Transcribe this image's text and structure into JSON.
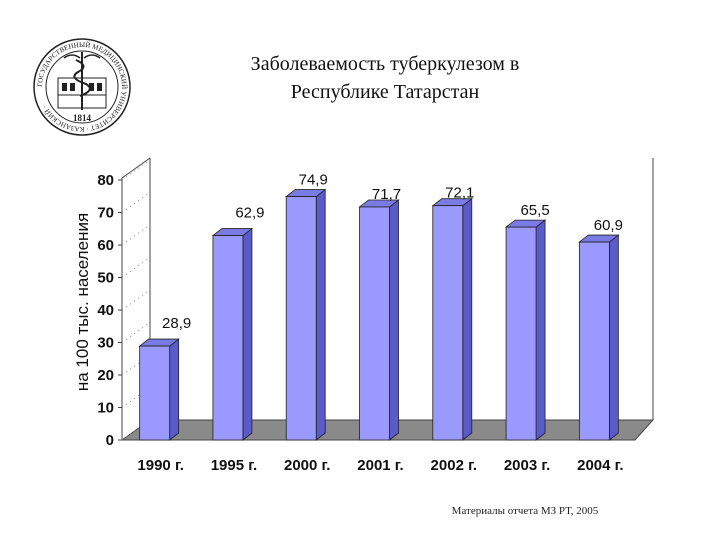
{
  "seal": {
    "year": "1814",
    "text": "ГОСУДАРСТВЕННЫЙ МЕДИЦИНСКИЙ УНИВЕРСИТЕТ · КАЗАНСКИЙ ·"
  },
  "footer": "Материалы отчета МЗ РТ, 2005",
  "colors": {
    "bar_front": "#9999ff",
    "bar_side": "#5a5ac8",
    "bar_top": "#7b7be6",
    "floor": "#8a8a8a",
    "wall": "#ffffff"
  },
  "chart_data": {
    "type": "bar",
    "title": [
      "Заболеваемость туберкулезом в",
      "Республике Татарстан"
    ],
    "ylabel": "на 100 тыс. населения",
    "xlabel": "",
    "categories": [
      "1990 г.",
      "1995 г.",
      "2000 г.",
      "2001 г.",
      "2002 г.",
      "2003 г.",
      "2004 г."
    ],
    "values": [
      28.9,
      62.9,
      74.9,
      71.7,
      72.1,
      65.5,
      60.9
    ],
    "value_labels": [
      "28,9",
      "62,9",
      "74,9",
      "71,7",
      "72,1",
      "65,5",
      "60,9"
    ],
    "yticks": [
      0,
      10,
      20,
      30,
      40,
      50,
      60,
      70,
      80
    ],
    "ylim": [
      0,
      80
    ],
    "grid": false,
    "legend": "none"
  }
}
